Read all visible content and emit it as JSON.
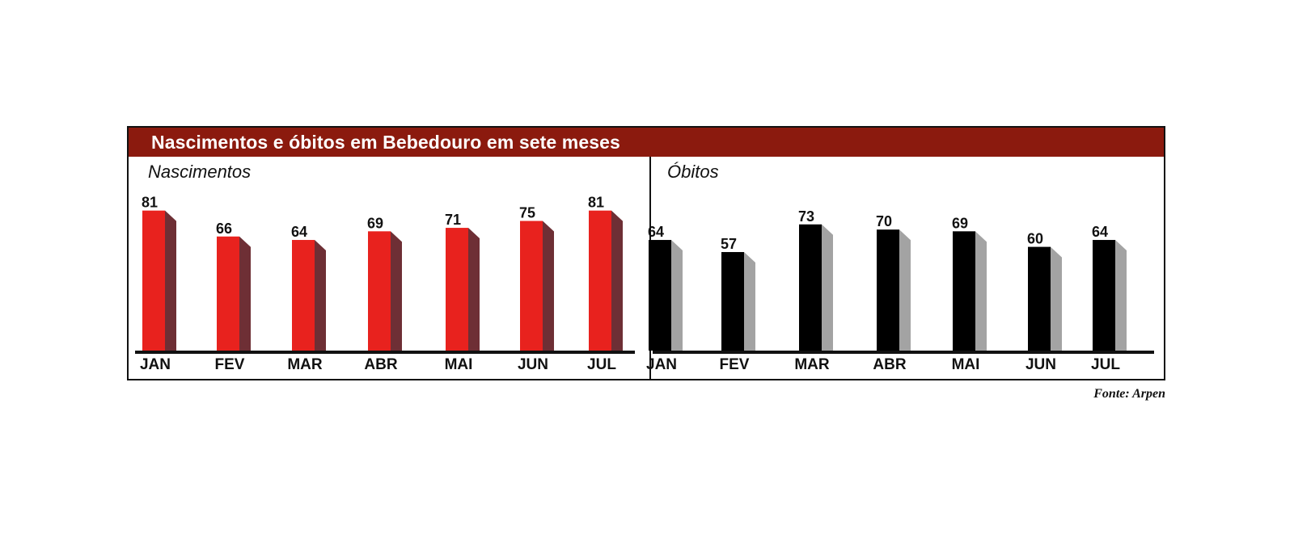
{
  "title": "Nascimentos e óbitos em Bebedouro em sete meses",
  "source": "Fonte: Arpen",
  "colors": {
    "title_band": "#8b1a0e",
    "nascimentos_front": "#e8221e",
    "nascimentos_side": "#6e2f35",
    "obitos_front": "#000000",
    "obitos_side": "#a3a3a3",
    "baseline": "#111111"
  },
  "chart_data": [
    {
      "type": "bar",
      "title": "Nascimentos",
      "categories": [
        "JAN",
        "FEV",
        "MAR",
        "ABR",
        "MAI",
        "JUN",
        "JUL"
      ],
      "values": [
        81,
        66,
        64,
        69,
        71,
        75,
        81
      ],
      "data_labels": [
        "81",
        "66",
        "64",
        "69",
        "71",
        "75",
        "81"
      ],
      "ylim": [
        0,
        90
      ],
      "grid": false,
      "style": "3d-bar"
    },
    {
      "type": "bar",
      "title": "Óbitos",
      "categories": [
        "JAN",
        "FEV",
        "MAR",
        "ABR",
        "MAI",
        "JUN",
        "JUL"
      ],
      "values": [
        64,
        57,
        73,
        70,
        69,
        60,
        64
      ],
      "data_labels": [
        "64",
        "57",
        "73",
        "70",
        "69",
        "60",
        "64"
      ],
      "ylim": [
        0,
        90
      ],
      "grid": false,
      "style": "3d-bar"
    }
  ]
}
